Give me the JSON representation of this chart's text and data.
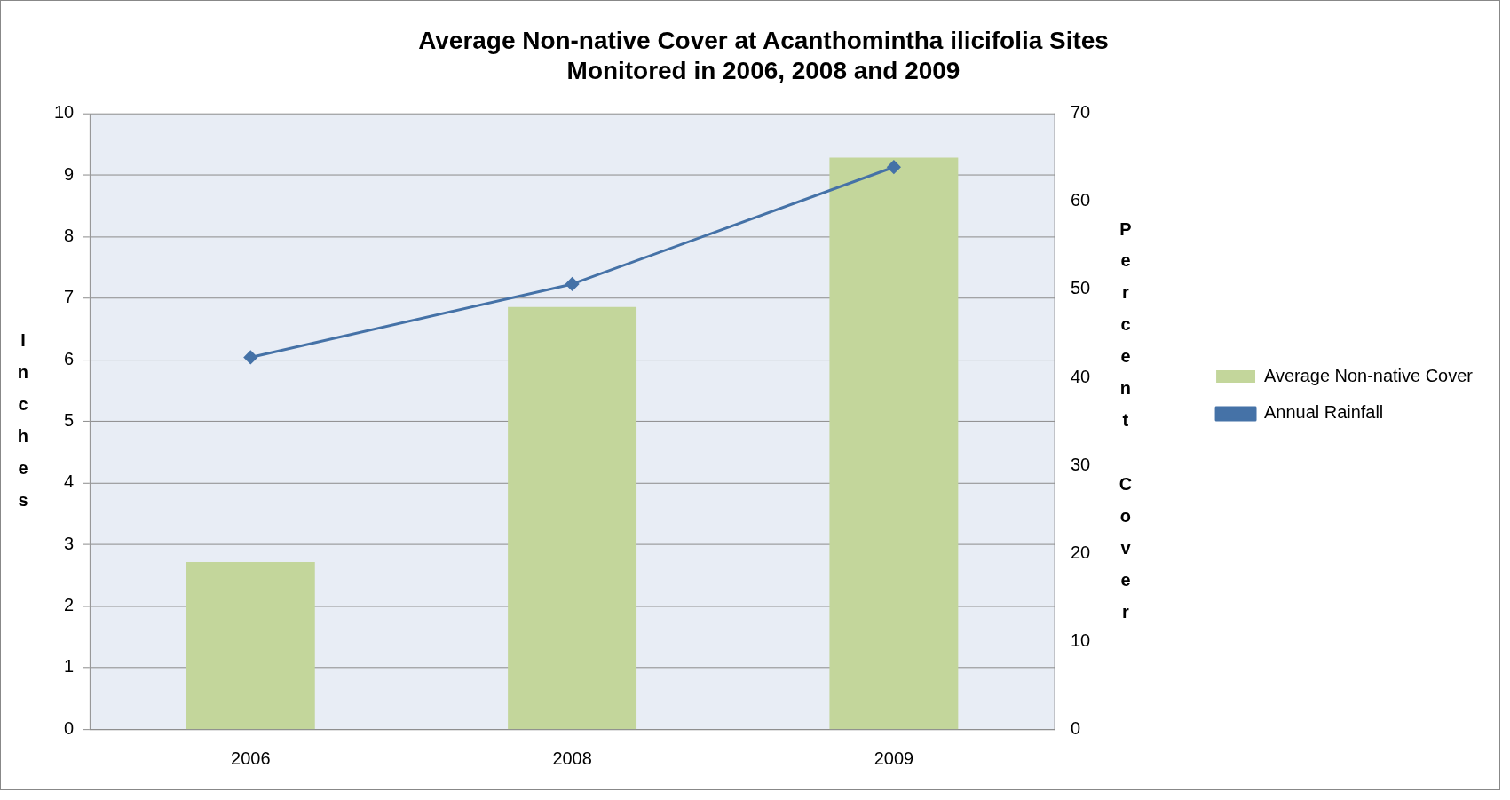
{
  "chart_data": {
    "type": "bar",
    "title": "Average Non-native Cover at Acanthomintha ilicifolia Sites Monitored in 2006, 2008 and 2009",
    "categories": [
      "2006",
      "2008",
      "2009"
    ],
    "series": [
      {
        "name": "Average Non-native Cover",
        "axis": "y2",
        "color": "#c3d69b",
        "values": [
          19,
          48,
          65
        ]
      },
      {
        "name": "Annual Rainfall",
        "type": "line",
        "axis": "y",
        "color": "#4572a7",
        "marker": "diamond",
        "values": [
          6.04,
          7.23,
          9.13
        ]
      }
    ],
    "ylabel": "Inches",
    "y2label": "Percent Cover",
    "ylim": [
      0,
      10
    ],
    "yticks": [
      0,
      1,
      2,
      3,
      4,
      5,
      6,
      7,
      8,
      9,
      10
    ],
    "y2lim": [
      0,
      70
    ],
    "y2ticks": [
      0,
      10,
      20,
      30,
      40,
      50,
      60,
      70
    ],
    "grid": "y",
    "legend": "right"
  }
}
